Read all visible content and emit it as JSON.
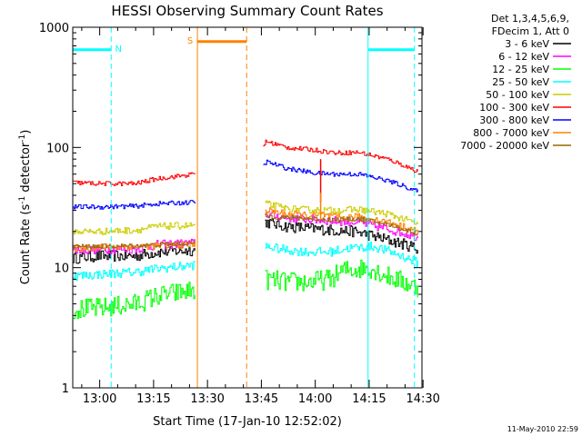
{
  "chart_data": {
    "type": "line",
    "title": "HESSI Observing Summary Count Rates",
    "xlabel": "Start Time (17-Jan-10 12:52:02)",
    "ylabel_parts": {
      "base": "Count Rate (s",
      "sup1": "-1",
      "mid": " detector",
      "sup2": "-1",
      "end": ")"
    },
    "yscale": "log",
    "ylim": [
      1,
      1000
    ],
    "xlim": [
      "12:52:02",
      "14:29:40"
    ],
    "x_unit": "minutes after 12:00",
    "y_ticks": [
      {
        "value": 1,
        "label": "1"
      },
      {
        "value": 10,
        "label": "10"
      },
      {
        "value": 100,
        "label": "100"
      },
      {
        "value": 1000,
        "label": "1000"
      }
    ],
    "x_ticks": [
      {
        "value": 60,
        "label": "13:00"
      },
      {
        "value": 75,
        "label": "13:15"
      },
      {
        "value": 90,
        "label": "13:30"
      },
      {
        "value": 105,
        "label": "13:45"
      },
      {
        "value": 120,
        "label": "14:00"
      },
      {
        "value": 135,
        "label": "14:15"
      },
      {
        "value": 150,
        "label": "14:30"
      }
    ],
    "legend": {
      "position": "right",
      "header": [
        "Det 1,3,4,5,6,9,",
        "FDecim 1, Att 0"
      ],
      "entries": [
        {
          "label": "3 - 6 keV",
          "color": "#000000"
        },
        {
          "label": "6 - 12 keV",
          "color": "#ff00ff"
        },
        {
          "label": "12 - 25 keV",
          "color": "#00ff00"
        },
        {
          "label": "25 - 50 keV",
          "color": "#00ffff"
        },
        {
          "label": "50 - 100 keV",
          "color": "#cccc00"
        },
        {
          "label": "100 - 300 keV",
          "color": "#ff0000"
        },
        {
          "label": "300 - 800 keV",
          "color": "#0000ff"
        },
        {
          "label": "800 - 7000 keV",
          "color": "#ff8000"
        },
        {
          "label": "7000 - 20000 keV",
          "color": "#996600"
        }
      ]
    },
    "series": [
      {
        "name": "3 - 6 keV",
        "color": "#000000",
        "noise": 0.05,
        "segments": [
          {
            "x": [
              52.5,
              60,
              70,
              76,
              86.5
            ],
            "y": [
              12.0,
              12.5,
              12.5,
              13.5,
              14.0
            ]
          },
          {
            "x": [
              106,
              112,
              120,
              125,
              131,
              140,
              148.5
            ],
            "y": [
              24.0,
              22.0,
              21.0,
              20.5,
              20.0,
              17.0,
              14.5
            ]
          }
        ]
      },
      {
        "name": "6 - 12 keV",
        "color": "#ff00ff",
        "noise": 0.04,
        "segments": [
          {
            "x": [
              52.5,
              60,
              70,
              76,
              86.5
            ],
            "y": [
              14.0,
              14.2,
              14.3,
              15.5,
              16.0
            ]
          },
          {
            "x": [
              106,
              112,
              120,
              125,
              131,
              140,
              148.5
            ],
            "y": [
              28.0,
              26.0,
              25.0,
              24.5,
              24.0,
              21.0,
              18.0
            ]
          }
        ]
      },
      {
        "name": "12 - 25 keV",
        "color": "#00ff00",
        "noise": 0.09,
        "segments": [
          {
            "x": [
              52.5,
              60,
              70,
              76,
              86.5
            ],
            "y": [
              4.5,
              4.6,
              5.0,
              5.8,
              6.5
            ]
          },
          {
            "x": [
              106,
              112,
              118,
              124,
              128,
              135,
              140,
              148.5
            ],
            "y": [
              8.0,
              7.6,
              7.6,
              8.0,
              9.5,
              10.0,
              8.5,
              6.8
            ]
          }
        ]
      },
      {
        "name": "25 - 50 keV",
        "color": "#00ffff",
        "noise": 0.04,
        "segments": [
          {
            "x": [
              52.5,
              60,
              70,
              76,
              86.5
            ],
            "y": [
              8.5,
              8.8,
              9.2,
              9.8,
              10.5
            ]
          },
          {
            "x": [
              106,
              112,
              118,
              124,
              129,
              136,
              141,
              148.5
            ],
            "y": [
              15.0,
              14.0,
              13.5,
              13.5,
              14.5,
              15.0,
              13.5,
              11.0
            ]
          }
        ]
      },
      {
        "name": "50 - 100 keV",
        "color": "#cccc00",
        "noise": 0.03,
        "segments": [
          {
            "x": [
              52.5,
              60,
              70,
              76,
              86.5
            ],
            "y": [
              20.0,
              20.0,
              20.5,
              22.0,
              22.5
            ]
          },
          {
            "x": [
              106,
              112,
              120,
              126,
              132,
              140,
              148.5
            ],
            "y": [
              34.0,
              31.0,
              30.0,
              30.0,
              30.5,
              28.0,
              23.0
            ]
          }
        ]
      },
      {
        "name": "100 - 300 keV",
        "color": "#ff0000",
        "noise": 0.02,
        "segments": [
          {
            "x": [
              52.5,
              60,
              70,
              76,
              86.5
            ],
            "y": [
              51.0,
              50.0,
              50.0,
              55.0,
              60.0
            ]
          },
          {
            "x": [
              105.5,
              106.3,
              112,
              120,
              126,
              132,
              140,
              148.5
            ],
            "y": [
              105,
              112,
              100,
              95,
              90,
              91,
              80,
              63
            ]
          }
        ]
      },
      {
        "name": "300 - 800 keV",
        "color": "#0000ff",
        "noise": 0.02,
        "segments": [
          {
            "x": [
              52.5,
              60,
              70,
              76,
              86.5
            ],
            "y": [
              32.0,
              32.0,
              32.5,
              34.0,
              35.0
            ]
          },
          {
            "x": [
              105.5,
              106.3,
              112,
              120,
              126,
              132,
              140,
              148.5
            ],
            "y": [
              70,
              76,
              67,
              61,
              60,
              60,
              53,
              43
            ]
          }
        ]
      },
      {
        "name": "800 - 7000 keV",
        "color": "#ff8000",
        "noise": 0.03,
        "segments": [
          {
            "x": [
              52.5,
              60,
              70,
              76,
              86.5
            ],
            "y": [
              14.5,
              14.8,
              15.0,
              15.2,
              15.5
            ]
          },
          {
            "x": [
              106,
              112,
              120,
              122,
              126,
              132,
              140,
              148.5
            ],
            "y": [
              30.0,
              28.0,
              27.0,
              27.5,
              26.0,
              26.5,
              24.0,
              20.0
            ]
          }
        ]
      },
      {
        "name": "7000 - 20000 keV",
        "color": "#996600",
        "noise": 0.02,
        "segments": [
          {
            "x": [
              52.5,
              60,
              70,
              76,
              86.5
            ],
            "y": [
              15.0,
              15.0,
              15.2,
              15.5,
              16.0
            ]
          },
          {
            "x": [
              106,
              112,
              120,
              126,
              132,
              140,
              148.5
            ],
            "y": [
              27.0,
              26.0,
              25.5,
              25.0,
              25.5,
              23.0,
              19.0
            ]
          }
        ]
      }
    ],
    "spikes": [
      {
        "x": 121.5,
        "y_from": 35,
        "y_to": 80,
        "color": "#ff0000"
      },
      {
        "x": 121.5,
        "y_from": 25,
        "y_to": 42,
        "color": "#ff8000"
      }
    ],
    "solid_markers": [
      {
        "x": 52.5,
        "color": "#00ffff"
      },
      {
        "x": 87.2,
        "color": "#ff8000"
      },
      {
        "x": 134.7,
        "color": "#00ffff"
      }
    ],
    "dashed_markers": [
      {
        "x": 63.2,
        "color": "#00ffff"
      },
      {
        "x": 100.9,
        "color": "#ff8000"
      },
      {
        "x": 147.6,
        "color": "#00ffff"
      }
    ],
    "intervals": [
      {
        "label": "N",
        "color": "#00ffff",
        "x_start": 52.5,
        "x_end": 63.2,
        "y": 650
      },
      {
        "label": "S",
        "color": "#ff8000",
        "x_start": 87.2,
        "x_end": 100.9,
        "y": 760
      },
      {
        "label": "",
        "color": "#00ffff",
        "x_start": 134.7,
        "x_end": 147.6,
        "y": 650
      }
    ]
  },
  "footer": {
    "timestamp": "11-May-2010 22:59"
  }
}
